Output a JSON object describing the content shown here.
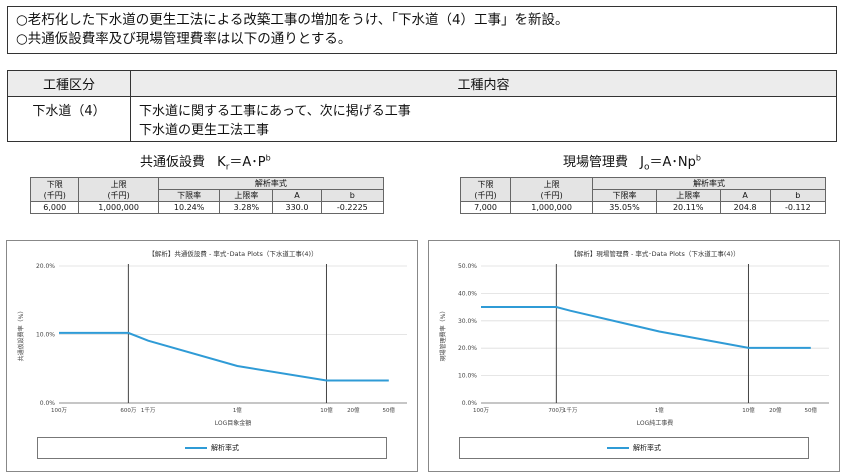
{
  "notice": {
    "line1": "○老朽化した下水道の更生工法による改築工事の増加をうけ、「下水道（4）工事」を新設。",
    "line2": "○共通仮設費率及び現場管理費率は以下の通りとする。"
  },
  "scope_table": {
    "headers": [
      "工種区分",
      "工種内容"
    ],
    "category": "下水道（4）",
    "content_line1": "下水道に関する工事にあって、次に掲げる工事",
    "content_line2": "下水道の更生工法工事"
  },
  "left_panel": {
    "caption_main": "共通仮設費",
    "caption_formula_k": "K",
    "caption_formula_sub": "r",
    "caption_formula_rest": "＝A･P",
    "caption_formula_sup": "b",
    "table": {
      "h_lower": "下限",
      "h_upper": "上限",
      "h_unit": "(千円)",
      "h_formula": "解析率式",
      "h_lower_rate": "下限率",
      "h_upper_rate": "上限率",
      "h_a": "A",
      "h_b": "b",
      "row": [
        "6,000",
        "1,000,000",
        "10.24%",
        "3.28%",
        "330.0",
        "-0.2225"
      ]
    },
    "chart_title": "【解析】共通仮設費 - 率式･Data Plots（下水道工事(4)）",
    "y_label": "共通仮設費率（%）",
    "x_label": "LOG目象金額",
    "legend": "解析率式"
  },
  "right_panel": {
    "caption_main": "現場管理費",
    "caption_formula_j": "J",
    "caption_formula_sub": "o",
    "caption_formula_rest": "＝A･Np",
    "caption_formula_sup": "b",
    "table": {
      "h_lower": "下限",
      "h_upper": "上限",
      "h_unit": "(千円)",
      "h_formula": "解析率式",
      "h_lower_rate": "下限率",
      "h_upper_rate": "上限率",
      "h_a": "A",
      "h_b": "b",
      "row": [
        "7,000",
        "1,000,000",
        "35.05%",
        "20.11%",
        "204.8",
        "-0.112"
      ]
    },
    "chart_title": "【解析】現場管理費 - 率式･Data Plots（下水道工事(4)）",
    "y_label": "現場管理費率（%）",
    "x_label": "LOG純工事費",
    "legend": "解析率式"
  },
  "chart_data": [
    {
      "type": "line",
      "title": "【解析】共通仮設費 - 率式･Data Plots（下水道工事(4)）",
      "xlabel": "LOG目象金額",
      "ylabel": "共通仮設費率（%）",
      "x_scale": "log",
      "x_ticks": [
        "100万",
        "600万",
        "1千万",
        "1億",
        "10億",
        "20億",
        "50億"
      ],
      "y_ticks": [
        "0.0%",
        "10.0%",
        "20.0%"
      ],
      "ylim": [
        0,
        20
      ],
      "vertical_lines": [
        "600万",
        "10億"
      ],
      "series": [
        {
          "name": "解析率式",
          "color": "#2f9bd6",
          "x": [
            "100万",
            "600万",
            "1千万",
            "1億",
            "10億",
            "20億",
            "50億"
          ],
          "y": [
            10.24,
            10.24,
            9.1,
            5.4,
            3.28,
            3.28,
            3.28
          ]
        }
      ],
      "legend_position": "bottom"
    },
    {
      "type": "line",
      "title": "【解析】現場管理費 - 率式･Data Plots（下水道工事(4)）",
      "xlabel": "LOG純工事費",
      "ylabel": "現場管理費率（%）",
      "x_scale": "log",
      "x_ticks": [
        "100万",
        "700万",
        "1千万",
        "1億",
        "10億",
        "20億",
        "50億"
      ],
      "y_ticks": [
        "0.0%",
        "10.0%",
        "20.0%",
        "30.0%",
        "40.0%",
        "50.0%"
      ],
      "ylim": [
        0,
        50
      ],
      "vertical_lines": [
        "700万",
        "10億"
      ],
      "series": [
        {
          "name": "解析率式",
          "color": "#2f9bd6",
          "x": [
            "100万",
            "700万",
            "1千万",
            "1億",
            "10億",
            "20億",
            "50億"
          ],
          "y": [
            35.05,
            35.05,
            33.7,
            26.1,
            20.11,
            20.11,
            20.11
          ]
        }
      ],
      "legend_position": "bottom"
    }
  ]
}
